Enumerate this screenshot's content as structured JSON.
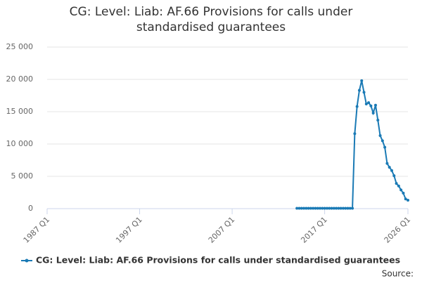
{
  "chart_data": {
    "type": "line",
    "title": "CG: Level: Liab: AF.66 Provisions for calls under standardised guarantees",
    "source": "Source:",
    "x": [
      2014,
      2014.25,
      2014.5,
      2014.75,
      2015,
      2015.25,
      2015.5,
      2015.75,
      2016,
      2016.25,
      2016.5,
      2016.75,
      2017,
      2017.25,
      2017.5,
      2017.75,
      2018,
      2018.25,
      2018.5,
      2018.75,
      2019,
      2019.25,
      2019.5,
      2019.75,
      2020,
      2020.25,
      2020.5,
      2020.75,
      2021,
      2021.25,
      2021.5,
      2021.75,
      2022,
      2022.25,
      2022.5,
      2022.75,
      2023,
      2023.25,
      2023.5,
      2023.75,
      2024,
      2024.25,
      2024.5,
      2024.75,
      2025,
      2025.25,
      2025.5,
      2025.75,
      2026
    ],
    "series": [
      {
        "name": "CG: Level: Liab: AF.66 Provisions for calls under standardised guarantees",
        "color": "#1a7ab5",
        "values": [
          50,
          50,
          50,
          50,
          50,
          50,
          50,
          50,
          50,
          50,
          50,
          50,
          50,
          50,
          50,
          50,
          50,
          50,
          50,
          50,
          50,
          50,
          50,
          50,
          50,
          11600,
          15800,
          18300,
          19800,
          18000,
          16200,
          16400,
          15900,
          14800,
          16000,
          13700,
          11300,
          10500,
          9500,
          7000,
          6400,
          5900,
          5100,
          3900,
          3500,
          2900,
          2400,
          1500,
          1300
        ]
      }
    ],
    "xlim": [
      1987,
      2026
    ],
    "xticks": [
      {
        "value": 1987,
        "label": "1987 Q1"
      },
      {
        "value": 1997,
        "label": "1997 Q1"
      },
      {
        "value": 2007,
        "label": "2007 Q1"
      },
      {
        "value": 2017,
        "label": "2017 Q1"
      },
      {
        "value": 2026,
        "label": "2026 Q1"
      }
    ],
    "ylim": [
      0,
      25000
    ],
    "yticks": [
      0,
      {
        "value": 5000,
        "label": "5 000"
      },
      {
        "value": 10000,
        "label": "10 000"
      },
      {
        "value": 15000,
        "label": "15 000"
      },
      {
        "value": 20000,
        "label": "20 000"
      },
      {
        "value": 25000,
        "label": "25 000"
      }
    ],
    "grid": true
  }
}
